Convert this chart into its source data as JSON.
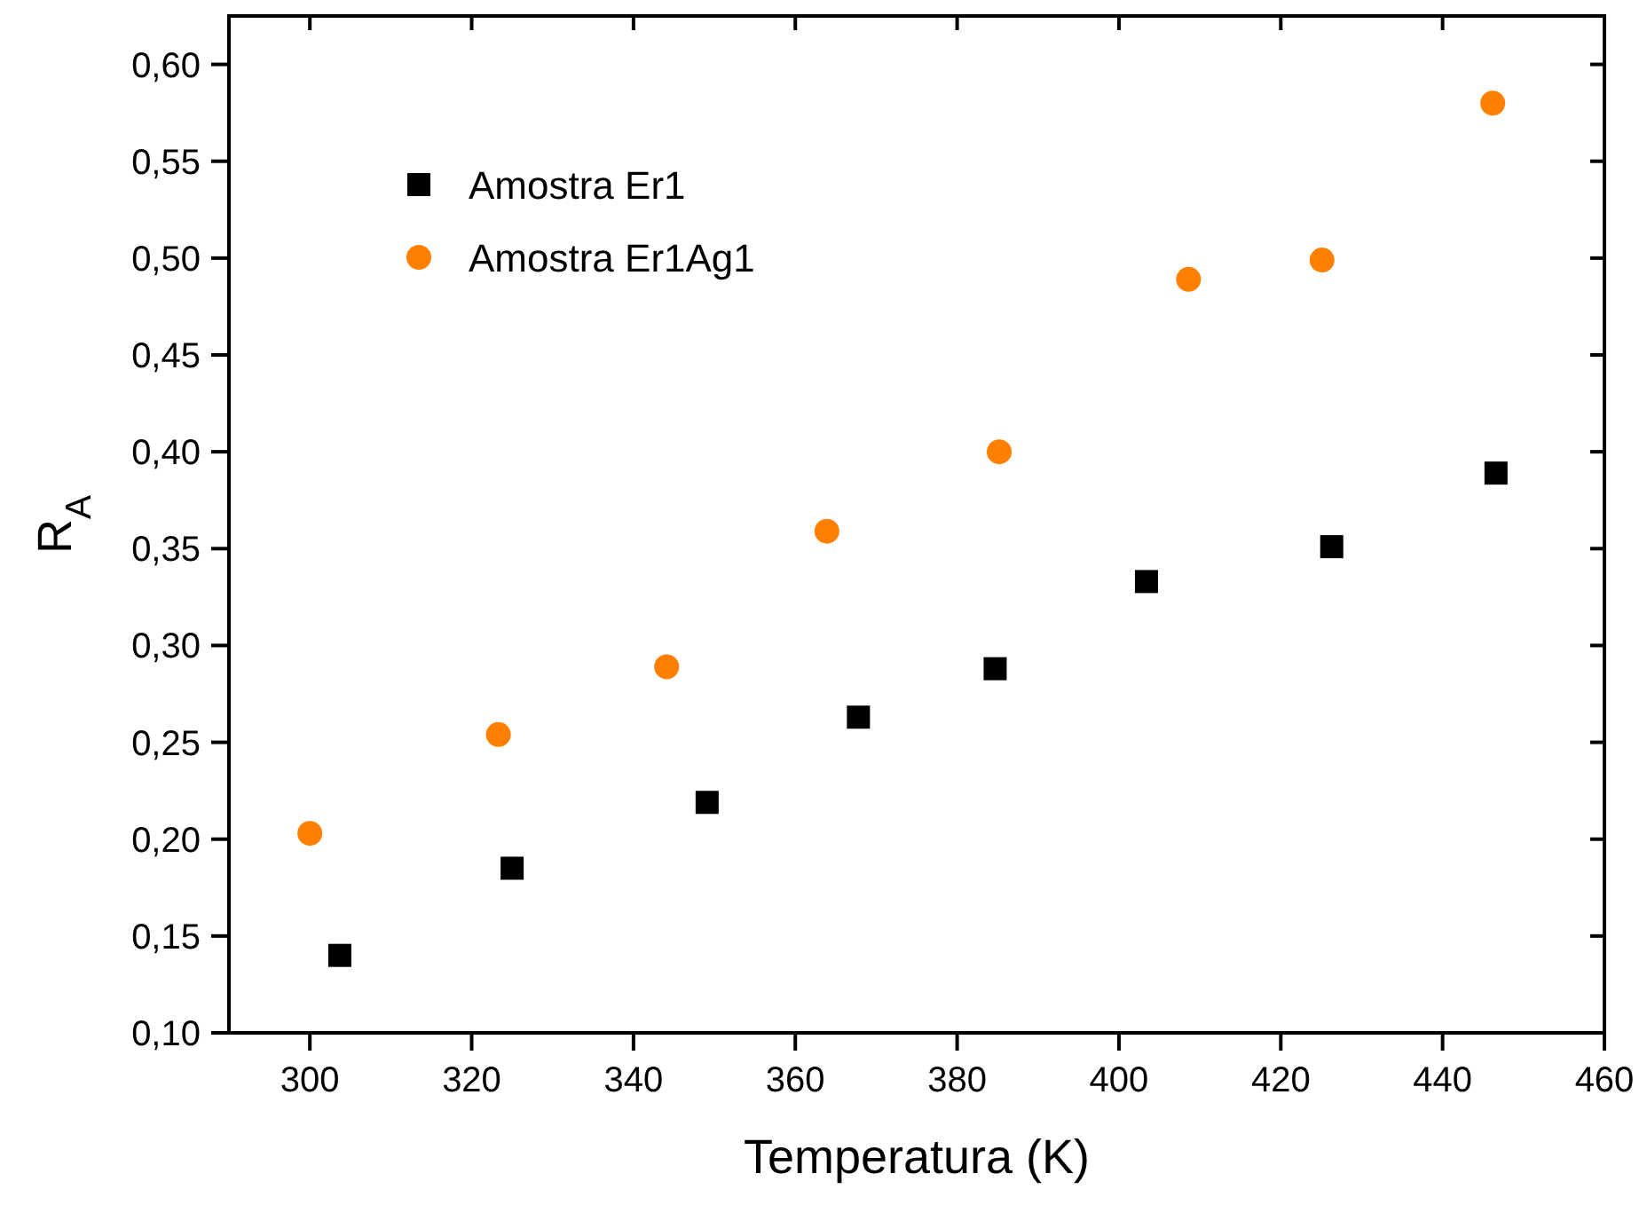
{
  "chart_data": {
    "type": "scatter",
    "xlabel": "Temperatura (K)",
    "ylabel": "R$_{A}$",
    "xlim": [
      290,
      460
    ],
    "ylim": [
      0.1,
      0.625
    ],
    "xticks": [
      300,
      320,
      340,
      360,
      380,
      400,
      420,
      440,
      460
    ],
    "yticks": [
      {
        "value": 0.1,
        "label": "0,10"
      },
      {
        "value": 0.15,
        "label": "0,15"
      },
      {
        "value": 0.2,
        "label": "0,20"
      },
      {
        "value": 0.25,
        "label": "0,25"
      },
      {
        "value": 0.3,
        "label": "0,30"
      },
      {
        "value": 0.35,
        "label": "0,35"
      },
      {
        "value": 0.4,
        "label": "0,40"
      },
      {
        "value": 0.45,
        "label": "0,45"
      },
      {
        "value": 0.5,
        "label": "0,50"
      },
      {
        "value": 0.55,
        "label": "0,55"
      },
      {
        "value": 0.6,
        "label": "0,60"
      }
    ],
    "legend": "top left",
    "grid": false,
    "series": [
      {
        "name": "Amostra Er1",
        "color": "#000000",
        "marker": "square",
        "x": [
          303.7,
          325.0,
          349.1,
          367.8,
          384.7,
          403.4,
          426.3,
          446.6
        ],
        "values": [
          0.14,
          0.185,
          0.219,
          0.263,
          0.288,
          0.333,
          0.351,
          0.389
        ]
      },
      {
        "name": "Amostra Er1Ag1",
        "color": "#ff8000",
        "marker": "circle",
        "x": [
          300.0,
          323.3,
          344.1,
          363.9,
          385.2,
          408.6,
          425.1,
          446.2
        ],
        "values": [
          0.203,
          0.254,
          0.289,
          0.359,
          0.4,
          0.489,
          0.499,
          0.58
        ]
      }
    ]
  }
}
